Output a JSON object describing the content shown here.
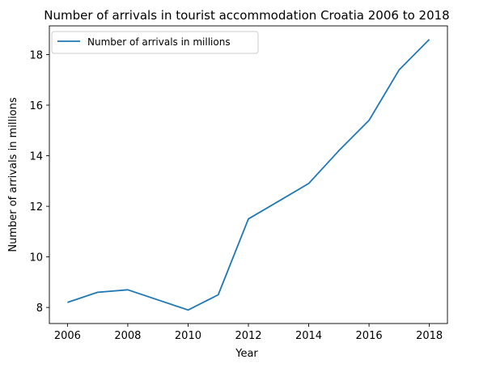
{
  "chart_data": {
    "type": "line",
    "title": "Number of arrivals in tourist accommodation Croatia 2006 to 2018",
    "xlabel": "Year",
    "ylabel": "Number of arrivals in millions",
    "x": [
      2006,
      2007,
      2008,
      2010,
      2011,
      2012,
      2013,
      2014,
      2015,
      2016,
      2017,
      2018
    ],
    "series": [
      {
        "name": "Number of arrivals in millions",
        "color": "#1f77b4",
        "values": [
          8.2,
          8.6,
          8.7,
          7.9,
          8.5,
          11.5,
          12.2,
          12.9,
          14.2,
          15.4,
          17.4,
          18.6
        ]
      }
    ],
    "xticks": [
      "2006",
      "2008",
      "2010",
      "2012",
      "2014",
      "2016",
      "2018"
    ],
    "yticks": [
      "8",
      "10",
      "12",
      "14",
      "16",
      "18"
    ],
    "xlim": [
      2005.4,
      2018.6
    ],
    "ylim": [
      7.365,
      19.135
    ],
    "grid": false,
    "legend": "upper-left"
  }
}
